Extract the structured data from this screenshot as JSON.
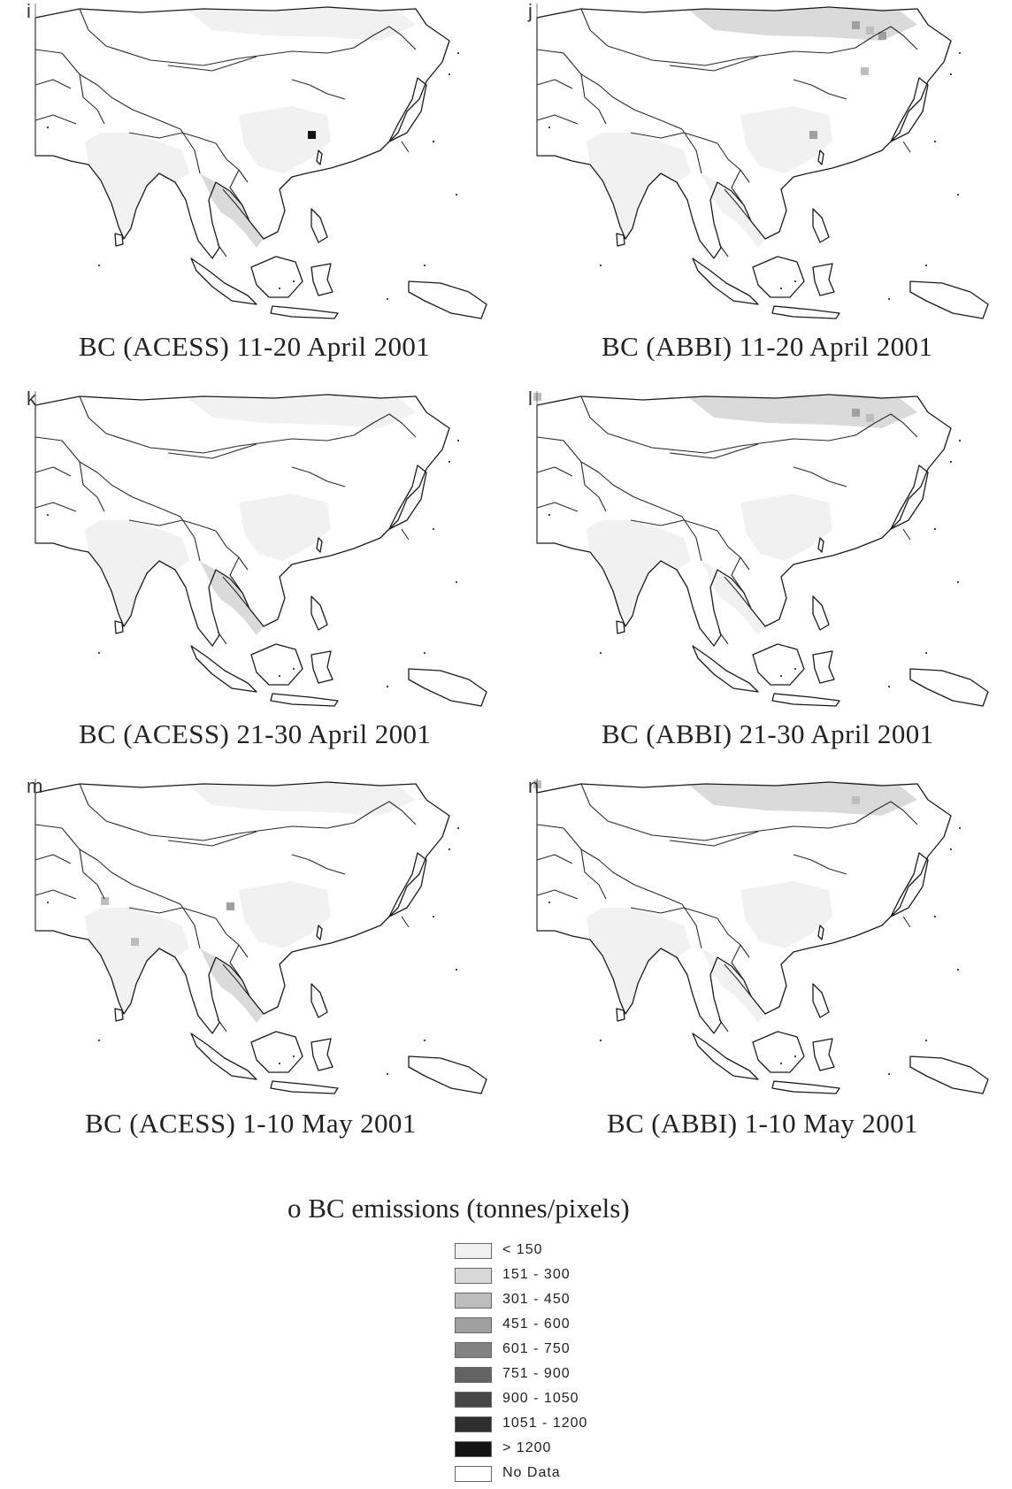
{
  "panels": [
    {
      "letter": "i",
      "caption": "BC (ACESS) 11-20 April 2001",
      "region_shading": {
        "india": "< 150",
        "se_asia": "151 - 300",
        "china_east": "< 150",
        "mongolia_ne": "< 150"
      },
      "hotspots": [
        {
          "class": "> 1200",
          "place": "central China"
        }
      ]
    },
    {
      "letter": "j",
      "caption": "BC (ABBI) 11-20 April 2001",
      "region_shading": {
        "india": "< 150",
        "se_asia": "< 150",
        "china_east": "< 150",
        "mongolia_ne": "151 - 300"
      },
      "hotspots": [
        {
          "class": "451 - 600",
          "place": "northeast China"
        },
        {
          "class": "301 - 450",
          "place": "northeast China"
        },
        {
          "class": "451 - 600",
          "place": "northeast China"
        },
        {
          "class": "301 - 450",
          "place": "Korea"
        },
        {
          "class": "451 - 600",
          "place": "central China"
        }
      ]
    },
    {
      "letter": "k",
      "caption": "BC (ACESS) 21-30 April 2001",
      "region_shading": {
        "india": "< 150",
        "se_asia": "151 - 300",
        "china_east": "< 150",
        "mongolia_ne": "< 150"
      },
      "hotspots": []
    },
    {
      "letter": "l",
      "caption": "BC (ABBI) 21-30 April 2001",
      "region_shading": {
        "india": "< 150",
        "se_asia": "< 150",
        "china_east": "< 150",
        "mongolia_ne": "151 - 300"
      },
      "hotspots": [
        {
          "class": "301 - 450",
          "place": "Kazakhstan"
        },
        {
          "class": "451 - 600",
          "place": "northeast China"
        },
        {
          "class": "301 - 450",
          "place": "northeast China"
        }
      ]
    },
    {
      "letter": "m",
      "caption": "BC (ACESS) 1-10 May 2001",
      "region_shading": {
        "india": "< 150",
        "se_asia": "151 - 300",
        "china_east": "< 150",
        "mongolia_ne": "< 150"
      },
      "hotspots": [
        {
          "class": "301 - 450",
          "place": "Pakistan"
        },
        {
          "class": "301 - 450",
          "place": "India"
        },
        {
          "class": "451 - 600",
          "place": "south China"
        }
      ]
    },
    {
      "letter": "n",
      "caption": "BC (ABBI) 1-10 May 2001",
      "region_shading": {
        "india": "< 150",
        "se_asia": "< 150",
        "china_east": "< 150",
        "mongolia_ne": "151 - 300"
      },
      "hotspots": [
        {
          "class": "301 - 450",
          "place": "Kazakhstan"
        },
        {
          "class": "301 - 450",
          "place": "northeast China"
        }
      ]
    }
  ],
  "legend": {
    "title": "o BC emissions (tonnes/pixels)",
    "items": [
      {
        "label": "< 150",
        "color": "#f0f0f0"
      },
      {
        "label": "151 - 300",
        "color": "#d8d8d8"
      },
      {
        "label": "301 - 450",
        "color": "#bdbdbd"
      },
      {
        "label": "451 - 600",
        "color": "#a0a0a0"
      },
      {
        "label": "601 - 750",
        "color": "#828282"
      },
      {
        "label": "751 - 900",
        "color": "#636363"
      },
      {
        "label": "900 - 1050",
        "color": "#474747"
      },
      {
        "label": "1051 - 1200",
        "color": "#2e2e2e"
      },
      {
        "label": "> 1200",
        "color": "#141414"
      },
      {
        "label": "No Data",
        "color": "#ffffff"
      }
    ]
  }
}
